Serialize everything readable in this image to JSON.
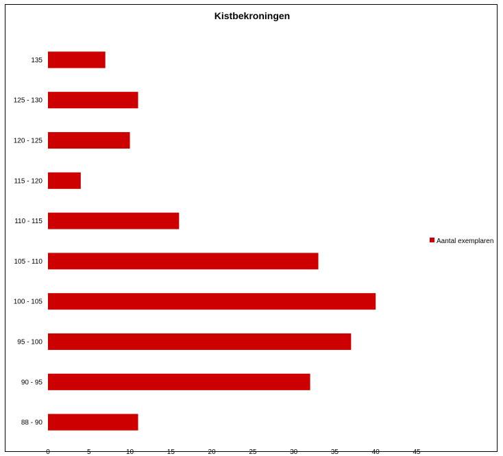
{
  "chart_data": {
    "type": "bar",
    "orientation": "horizontal",
    "title": "Kistbekroningen",
    "xlabel": "",
    "ylabel": "",
    "categories": [
      "135",
      "125 - 130",
      "120 - 125",
      "115 - 120",
      "110 - 115",
      "105 - 110",
      "100 - 105",
      "95 - 100",
      "90 - 95",
      "88 - 90"
    ],
    "series": [
      {
        "name": "Aantal exemplaren",
        "values": [
          7,
          11,
          10,
          4,
          16,
          33,
          40,
          37,
          32,
          11
        ]
      }
    ],
    "xlim": [
      0,
      45
    ],
    "x_ticks": [
      "0",
      "5",
      "10",
      "15",
      "20",
      "25",
      "30",
      "35",
      "40",
      "45"
    ],
    "grid": false,
    "legend_position": "right",
    "colors": {
      "bar": "#cc0000"
    }
  }
}
